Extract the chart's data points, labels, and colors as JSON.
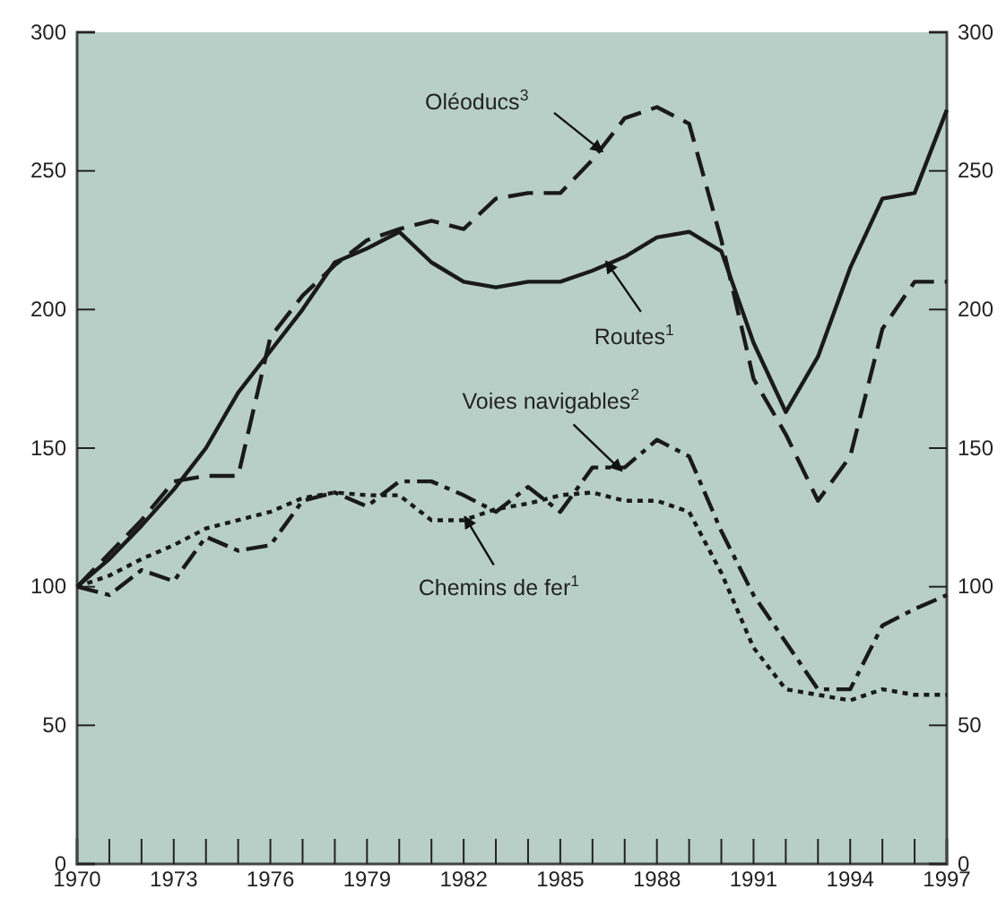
{
  "chart_data": {
    "type": "line",
    "x": [
      1970,
      1971,
      1972,
      1973,
      1974,
      1975,
      1976,
      1977,
      1978,
      1979,
      1980,
      1981,
      1982,
      1983,
      1984,
      1985,
      1986,
      1987,
      1988,
      1989,
      1990,
      1991,
      1992,
      1993,
      1994,
      1995,
      1996,
      1997
    ],
    "series": [
      {
        "color": "#1a1a1a",
        "line_style": "solid",
        "values": [
          100,
          110,
          122,
          135,
          150,
          170,
          185,
          200,
          217,
          222,
          228,
          217,
          210,
          208,
          210,
          210,
          214,
          219,
          226,
          228,
          221,
          188,
          163,
          183,
          215,
          240,
          242,
          272
        ]
      },
      {
        "color": "#1a1a1a",
        "line_style": "dashed",
        "values": [
          100,
          112,
          124,
          138,
          140,
          140,
          190,
          205,
          216,
          225,
          229,
          232,
          229,
          240,
          242,
          242,
          254,
          269,
          273,
          267,
          225,
          175,
          155,
          131,
          147,
          193,
          210,
          210
        ]
      },
      {
        "color": "#1a1a1a",
        "line_style": "dashdot",
        "values": [
          100,
          97,
          106,
          102,
          118,
          113,
          115,
          131,
          134,
          129,
          138,
          138,
          133,
          127,
          136,
          127,
          143,
          143,
          153,
          147,
          120,
          97,
          80,
          63,
          63,
          86,
          92,
          97
        ]
      },
      {
        "color": "#1a1a1a",
        "line_style": "dotted",
        "values": [
          100,
          104,
          110,
          115,
          121,
          124,
          127,
          132,
          134,
          133,
          133,
          124,
          124,
          128,
          130,
          133,
          134,
          131,
          131,
          127,
          105,
          78,
          63,
          61,
          59,
          63,
          61,
          61
        ]
      }
    ],
    "annotations": [
      {
        "text": "Oléoducs$^{3}$",
        "x": 1986.2,
        "y": 258
      },
      {
        "text": "Routes$^{1}$",
        "x": 1986.5,
        "y": 216
      },
      {
        "text": "Voies navigables$^{2}$",
        "x": 1986.8,
        "y": 143
      },
      {
        "text": "Chemins de fer$^{1}$",
        "x": 1982.1,
        "y": 124
      }
    ],
    "xlim": [
      1970,
      1997
    ],
    "xticks": [
      1970,
      {
        "value": 1971,
        "label": null
      },
      {
        "value": 1972,
        "label": null
      },
      1973,
      {
        "value": 1974,
        "label": null
      },
      {
        "value": 1975,
        "label": null
      },
      1976,
      {
        "value": 1977,
        "label": null
      },
      {
        "value": 1978,
        "label": null
      },
      1979,
      {
        "value": 1980,
        "label": null
      },
      {
        "value": 1981,
        "label": null
      },
      1982,
      {
        "value": 1983,
        "label": null
      },
      {
        "value": 1984,
        "label": null
      },
      1985,
      {
        "value": 1986,
        "label": null
      },
      {
        "value": 1987,
        "label": null
      },
      1988,
      {
        "value": 1989,
        "label": null
      },
      {
        "value": 1990,
        "label": null
      },
      1991,
      {
        "value": 1992,
        "label": null
      },
      {
        "value": 1993,
        "label": null
      },
      1994,
      {
        "value": 1995,
        "label": null
      },
      {
        "value": 1996,
        "label": null
      },
      1997
    ],
    "ylim": [
      0,
      300
    ],
    "yticks": [
      0,
      50,
      100,
      150,
      200,
      250,
      300
    ],
    "y2lim": [
      0,
      300
    ],
    "y2ticks": [
      0,
      50,
      100,
      150,
      200,
      250,
      300
    ],
    "grid": false
  }
}
